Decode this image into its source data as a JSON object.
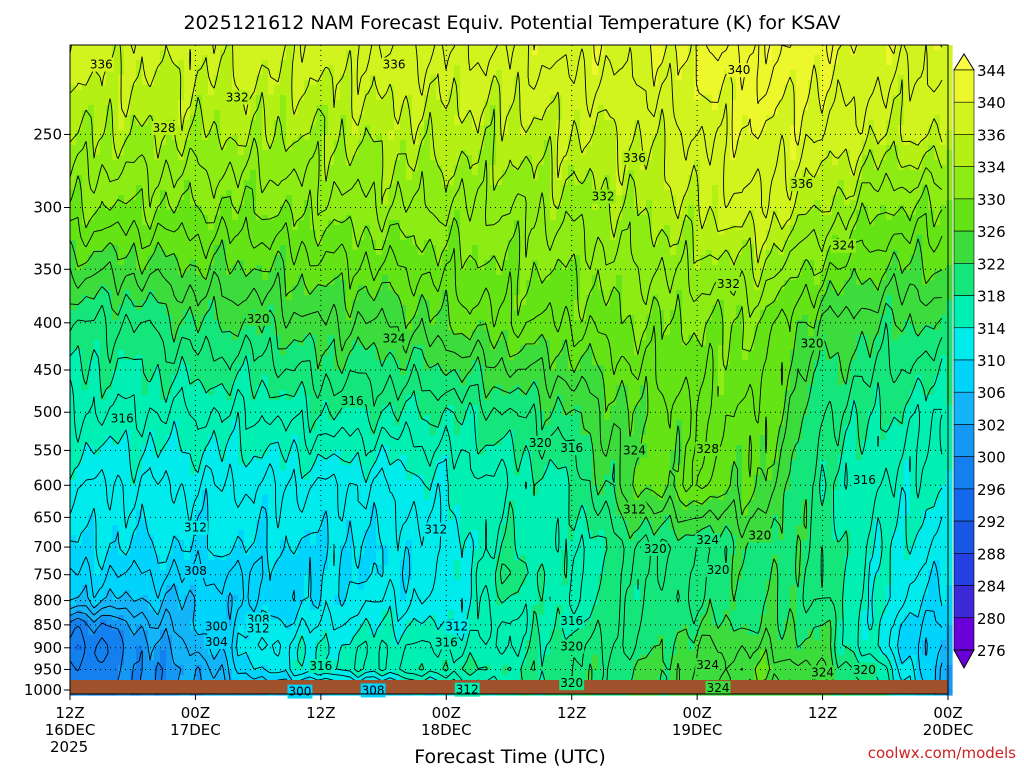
{
  "chart_data": {
    "type": "heatmap",
    "title": "2025121612 NAM Forecast Equiv. Potential Temperature (K) for KSAV",
    "xlabel": "Forecast Time (UTC)",
    "ylabel": "",
    "x_ticks": [
      {
        "hour": 0,
        "line1": "12Z",
        "line2": "16DEC",
        "line3": "2025"
      },
      {
        "hour": 12,
        "line1": "00Z",
        "line2": "17DEC",
        "line3": ""
      },
      {
        "hour": 24,
        "line1": "12Z",
        "line2": "",
        "line3": ""
      },
      {
        "hour": 36,
        "line1": "00Z",
        "line2": "18DEC",
        "line3": ""
      },
      {
        "hour": 48,
        "line1": "12Z",
        "line2": "",
        "line3": ""
      },
      {
        "hour": 60,
        "line1": "00Z",
        "line2": "19DEC",
        "line3": ""
      },
      {
        "hour": 72,
        "line1": "12Z",
        "line2": "",
        "line3": ""
      },
      {
        "hour": 84,
        "line1": "00Z",
        "line2": "20DEC",
        "line3": ""
      }
    ],
    "xlim": [
      0,
      84
    ],
    "y_ticks": [
      250,
      300,
      350,
      400,
      450,
      500,
      550,
      600,
      650,
      700,
      750,
      800,
      850,
      900,
      950,
      1000
    ],
    "ylim": [
      1010,
      200
    ],
    "y_scale": "log",
    "grid": true,
    "colorbar": {
      "levels": [
        276,
        280,
        284,
        288,
        292,
        296,
        300,
        302,
        306,
        310,
        314,
        318,
        322,
        326,
        330,
        334,
        336,
        340,
        344
      ],
      "colors": [
        "#6a00d8",
        "#3c2ad8",
        "#2440e0",
        "#1a56e6",
        "#1468ec",
        "#1480f0",
        "#1498f4",
        "#14b4f8",
        "#00d4fc",
        "#00ecec",
        "#00f0b4",
        "#14e67c",
        "#3cdc3c",
        "#64e414",
        "#8cec14",
        "#b4f014",
        "#d2f41e",
        "#ecf82c",
        "#fafa46"
      ]
    },
    "columns_hours": [
      0,
      6,
      12,
      18,
      24,
      30,
      36,
      42,
      48,
      54,
      60,
      66,
      72,
      78,
      84
    ],
    "columns": [
      {
        "p": [
          1000,
          950,
          900,
          850,
          800,
          750,
          700,
          600,
          500,
          400,
          300,
          250
        ],
        "t": [
          300,
          298,
          296,
          298,
          306,
          308,
          310,
          312,
          316,
          320,
          330,
          334
        ]
      },
      {
        "p": [
          1000,
          950,
          900,
          850,
          800,
          750,
          700,
          600,
          500,
          400,
          300,
          250
        ],
        "t": [
          300,
          300,
          300,
          302,
          306,
          308,
          310,
          312,
          316,
          320,
          330,
          334
        ]
      },
      {
        "p": [
          1000,
          950,
          900,
          850,
          800,
          750,
          700,
          600,
          500,
          400,
          300,
          250
        ],
        "t": [
          302,
          302,
          304,
          306,
          306,
          308,
          310,
          312,
          316,
          322,
          330,
          334
        ]
      },
      {
        "p": [
          1000,
          950,
          900,
          850,
          800,
          750,
          700,
          600,
          500,
          400,
          300,
          250
        ],
        "t": [
          306,
          310,
          312,
          310,
          308,
          308,
          310,
          312,
          316,
          322,
          330,
          334
        ]
      },
      {
        "p": [
          1000,
          950,
          900,
          850,
          800,
          750,
          700,
          600,
          500,
          400,
          300,
          250
        ],
        "t": [
          306,
          314,
          314,
          312,
          310,
          310,
          310,
          312,
          318,
          324,
          331,
          334
        ]
      },
      {
        "p": [
          1000,
          950,
          900,
          850,
          800,
          750,
          700,
          600,
          500,
          400,
          300,
          250
        ],
        "t": [
          308,
          316,
          316,
          314,
          312,
          310,
          310,
          312,
          318,
          324,
          332,
          335
        ]
      },
      {
        "p": [
          1000,
          950,
          900,
          850,
          800,
          750,
          700,
          600,
          500,
          400,
          300,
          250
        ],
        "t": [
          312,
          318,
          316,
          314,
          312,
          312,
          312,
          314,
          318,
          326,
          332,
          335
        ]
      },
      {
        "p": [
          1000,
          950,
          900,
          850,
          800,
          750,
          700,
          600,
          500,
          400,
          300,
          250
        ],
        "t": [
          316,
          318,
          316,
          316,
          318,
          320,
          318,
          316,
          320,
          328,
          332,
          335
        ]
      },
      {
        "p": [
          1000,
          950,
          900,
          850,
          800,
          750,
          700,
          600,
          500,
          400,
          300,
          250
        ],
        "t": [
          320,
          320,
          320,
          318,
          316,
          316,
          316,
          318,
          322,
          328,
          333,
          336
        ]
      },
      {
        "p": [
          1000,
          950,
          900,
          850,
          800,
          750,
          700,
          600,
          500,
          400,
          300,
          250
        ],
        "t": [
          322,
          322,
          320,
          320,
          320,
          320,
          320,
          326,
          326,
          330,
          334,
          336
        ]
      },
      {
        "p": [
          1000,
          950,
          900,
          850,
          800,
          750,
          700,
          600,
          500,
          400,
          300,
          250
        ],
        "t": [
          324,
          324,
          324,
          322,
          320,
          320,
          320,
          328,
          328,
          330,
          336,
          338
        ]
      },
      {
        "p": [
          1000,
          950,
          900,
          850,
          800,
          750,
          700,
          600,
          500,
          400,
          300,
          250
        ],
        "t": [
          324,
          326,
          324,
          322,
          322,
          322,
          322,
          326,
          328,
          330,
          338,
          340
        ]
      },
      {
        "p": [
          1000,
          950,
          900,
          850,
          800,
          750,
          700,
          600,
          500,
          400,
          300,
          250
        ],
        "t": [
          324,
          324,
          322,
          322,
          320,
          320,
          320,
          318,
          320,
          324,
          334,
          338
        ]
      },
      {
        "p": [
          1000,
          950,
          900,
          850,
          800,
          750,
          700,
          600,
          500,
          400,
          300,
          250
        ],
        "t": [
          318,
          316,
          312,
          312,
          314,
          314,
          314,
          316,
          318,
          322,
          330,
          336
        ]
      },
      {
        "p": [
          1000,
          950,
          900,
          850,
          800,
          750,
          700,
          600,
          500,
          400,
          300,
          250
        ],
        "t": [
          302,
          302,
          304,
          306,
          308,
          310,
          312,
          314,
          316,
          322,
          330,
          336
        ]
      }
    ],
    "contour_labels": [
      {
        "text": "336",
        "hour": 3,
        "p": 210
      },
      {
        "text": "336",
        "hour": 31,
        "p": 210
      },
      {
        "text": "340",
        "hour": 64,
        "p": 213
      },
      {
        "text": "332",
        "hour": 16,
        "p": 228
      },
      {
        "text": "328",
        "hour": 9,
        "p": 246
      },
      {
        "text": "336",
        "hour": 54,
        "p": 265
      },
      {
        "text": "332",
        "hour": 51,
        "p": 292
      },
      {
        "text": "336",
        "hour": 70,
        "p": 283
      },
      {
        "text": "324",
        "hour": 74,
        "p": 330
      },
      {
        "text": "332",
        "hour": 63,
        "p": 363
      },
      {
        "text": "320",
        "hour": 18,
        "p": 396
      },
      {
        "text": "324",
        "hour": 31,
        "p": 416
      },
      {
        "text": "320",
        "hour": 71,
        "p": 421
      },
      {
        "text": "316",
        "hour": 27,
        "p": 486
      },
      {
        "text": "316",
        "hour": 5,
        "p": 508
      },
      {
        "text": "320",
        "hour": 45,
        "p": 540
      },
      {
        "text": "316",
        "hour": 48,
        "p": 547
      },
      {
        "text": "324",
        "hour": 54,
        "p": 550
      },
      {
        "text": "328",
        "hour": 61,
        "p": 548
      },
      {
        "text": "316",
        "hour": 76,
        "p": 592
      },
      {
        "text": "312",
        "hour": 54,
        "p": 637
      },
      {
        "text": "312",
        "hour": 12,
        "p": 667
      },
      {
        "text": "312",
        "hour": 35,
        "p": 670
      },
      {
        "text": "320",
        "hour": 56,
        "p": 703
      },
      {
        "text": "324",
        "hour": 61,
        "p": 688
      },
      {
        "text": "320",
        "hour": 66,
        "p": 680
      },
      {
        "text": "308",
        "hour": 12,
        "p": 743
      },
      {
        "text": "320",
        "hour": 62,
        "p": 741
      },
      {
        "text": "308",
        "hour": 18,
        "p": 839
      },
      {
        "text": "300",
        "hour": 14,
        "p": 853
      },
      {
        "text": "312",
        "hour": 18,
        "p": 858
      },
      {
        "text": "312",
        "hour": 37,
        "p": 853
      },
      {
        "text": "316",
        "hour": 48,
        "p": 842
      },
      {
        "text": "304",
        "hour": 14,
        "p": 887
      },
      {
        "text": "316",
        "hour": 36,
        "p": 888
      },
      {
        "text": "320",
        "hour": 48,
        "p": 897
      },
      {
        "text": "316",
        "hour": 24,
        "p": 942
      },
      {
        "text": "324",
        "hour": 61,
        "p": 940
      },
      {
        "text": "324",
        "hour": 72,
        "p": 957
      },
      {
        "text": "320",
        "hour": 76,
        "p": 951
      },
      {
        "text": "320",
        "hour": 48,
        "p": 983
      },
      {
        "text": "324",
        "hour": 62,
        "p": 995
      },
      {
        "text": "300",
        "hour": 22,
        "p": 1004
      },
      {
        "text": "308",
        "hour": 29,
        "p": 1001
      },
      {
        "text": "312",
        "hour": 38,
        "p": 999
      }
    ]
  },
  "credit": "coolwx.com/models"
}
